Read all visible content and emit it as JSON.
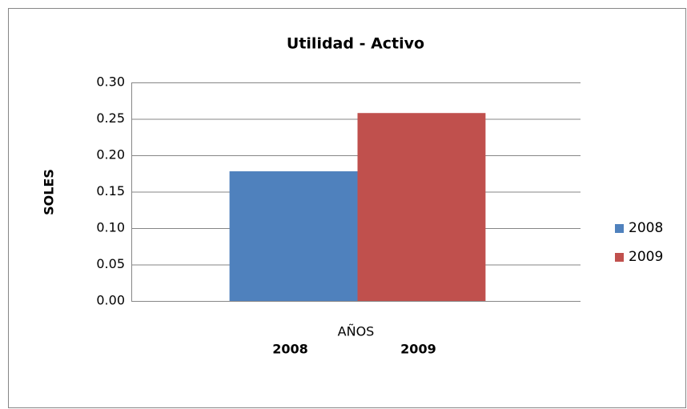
{
  "chart_data": {
    "type": "bar",
    "title": "Utilidad -  Activo",
    "ylabel": "SOLES",
    "categories": [
      "AÑOS"
    ],
    "xlabel": [
      "2008",
      "2009"
    ],
    "series": [
      {
        "name": "2008",
        "color": "#4f81bd",
        "values": [
          0.178
        ]
      },
      {
        "name": "2009",
        "color": "#c0504d",
        "values": [
          0.258
        ]
      }
    ],
    "ylim": [
      0,
      0.3
    ],
    "yticks": [
      {
        "value": 0,
        "label": "0.00"
      },
      {
        "value": 0.05,
        "label": "0.05"
      },
      {
        "value": 0.1,
        "label": "0.10"
      },
      {
        "value": 0.15,
        "label": "0.15"
      },
      {
        "value": 0.2,
        "label": "0.20"
      },
      {
        "value": 0.25,
        "label": "0.25"
      },
      {
        "value": 0.3,
        "label": "0.30"
      }
    ],
    "grid": true,
    "legend": "right"
  }
}
